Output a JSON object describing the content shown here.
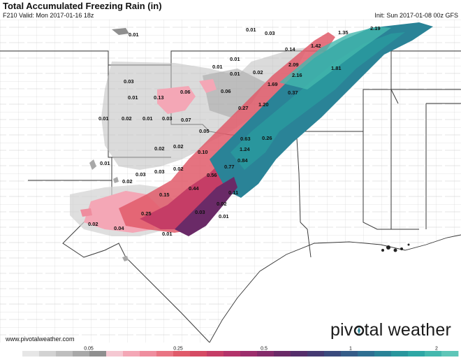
{
  "header": {
    "title": "Total Accumulated Freezing Rain (in)",
    "valid": "F210 Valid: Mon 2017-01-16 18z",
    "init": "Init: Sun 2017-01-08 00z GFS"
  },
  "footer": {
    "website": "www.pivotalweather.com",
    "brand_left": "piv",
    "brand_right": "tal weather"
  },
  "colorbar": {
    "labels": [
      "0.05",
      "0.25",
      "0.5",
      "1",
      "2"
    ],
    "colors": [
      "#ffffff",
      "#e6e6e6",
      "#d2d2d2",
      "#bebebe",
      "#a8a8a8",
      "#8f8f8f",
      "#f5c8d2",
      "#f4a7b6",
      "#ef8d9e",
      "#e97483",
      "#e05a6a",
      "#d54a63",
      "#c53d66",
      "#b3336a",
      "#9c2e6c",
      "#842b6a",
      "#6a2a67",
      "#552e6b",
      "#453a72",
      "#3a4a7d",
      "#355c88",
      "#2f6f92",
      "#2a8397",
      "#29969d",
      "#2ea7a5",
      "#44b8ae",
      "#5ec6b8"
    ]
  },
  "map_labels": [
    {
      "text": "0.01"
    },
    {
      "text": "0.01"
    },
    {
      "text": "0.03"
    },
    {
      "text": "1.35"
    },
    {
      "text": "2.19"
    },
    {
      "text": "0.14"
    },
    {
      "text": "1.42"
    },
    {
      "text": "0.01"
    },
    {
      "text": "0.01"
    },
    {
      "text": "2.09"
    },
    {
      "text": "1.81"
    },
    {
      "text": "0.01"
    },
    {
      "text": "0.02"
    },
    {
      "text": "2.16"
    },
    {
      "text": "0.03"
    },
    {
      "text": "1.69"
    },
    {
      "text": "0.06"
    },
    {
      "text": "0.06"
    },
    {
      "text": "0.37"
    },
    {
      "text": "0.01"
    },
    {
      "text": "0.13"
    },
    {
      "text": "1.20"
    },
    {
      "text": "0.27"
    },
    {
      "text": "0.01"
    },
    {
      "text": "0.02"
    },
    {
      "text": "0.01"
    },
    {
      "text": "0.03"
    },
    {
      "text": "0.07"
    },
    {
      "text": "0.05"
    },
    {
      "text": "0.63"
    },
    {
      "text": "0.26"
    },
    {
      "text": "0.02"
    },
    {
      "text": "0.02"
    },
    {
      "text": "1.24"
    },
    {
      "text": "0.10"
    },
    {
      "text": "0.84"
    },
    {
      "text": "0.01"
    },
    {
      "text": "0.77"
    },
    {
      "text": "0.03"
    },
    {
      "text": "0.03"
    },
    {
      "text": "0.02"
    },
    {
      "text": "0.56"
    },
    {
      "text": "0.02"
    },
    {
      "text": "0.44"
    },
    {
      "text": "0.11"
    },
    {
      "text": "0.15"
    },
    {
      "text": "0.02"
    },
    {
      "text": "0.25"
    },
    {
      "text": "0.03"
    },
    {
      "text": "0.01"
    },
    {
      "text": "0.02"
    },
    {
      "text": "0.04"
    },
    {
      "text": "0.01"
    }
  ]
}
